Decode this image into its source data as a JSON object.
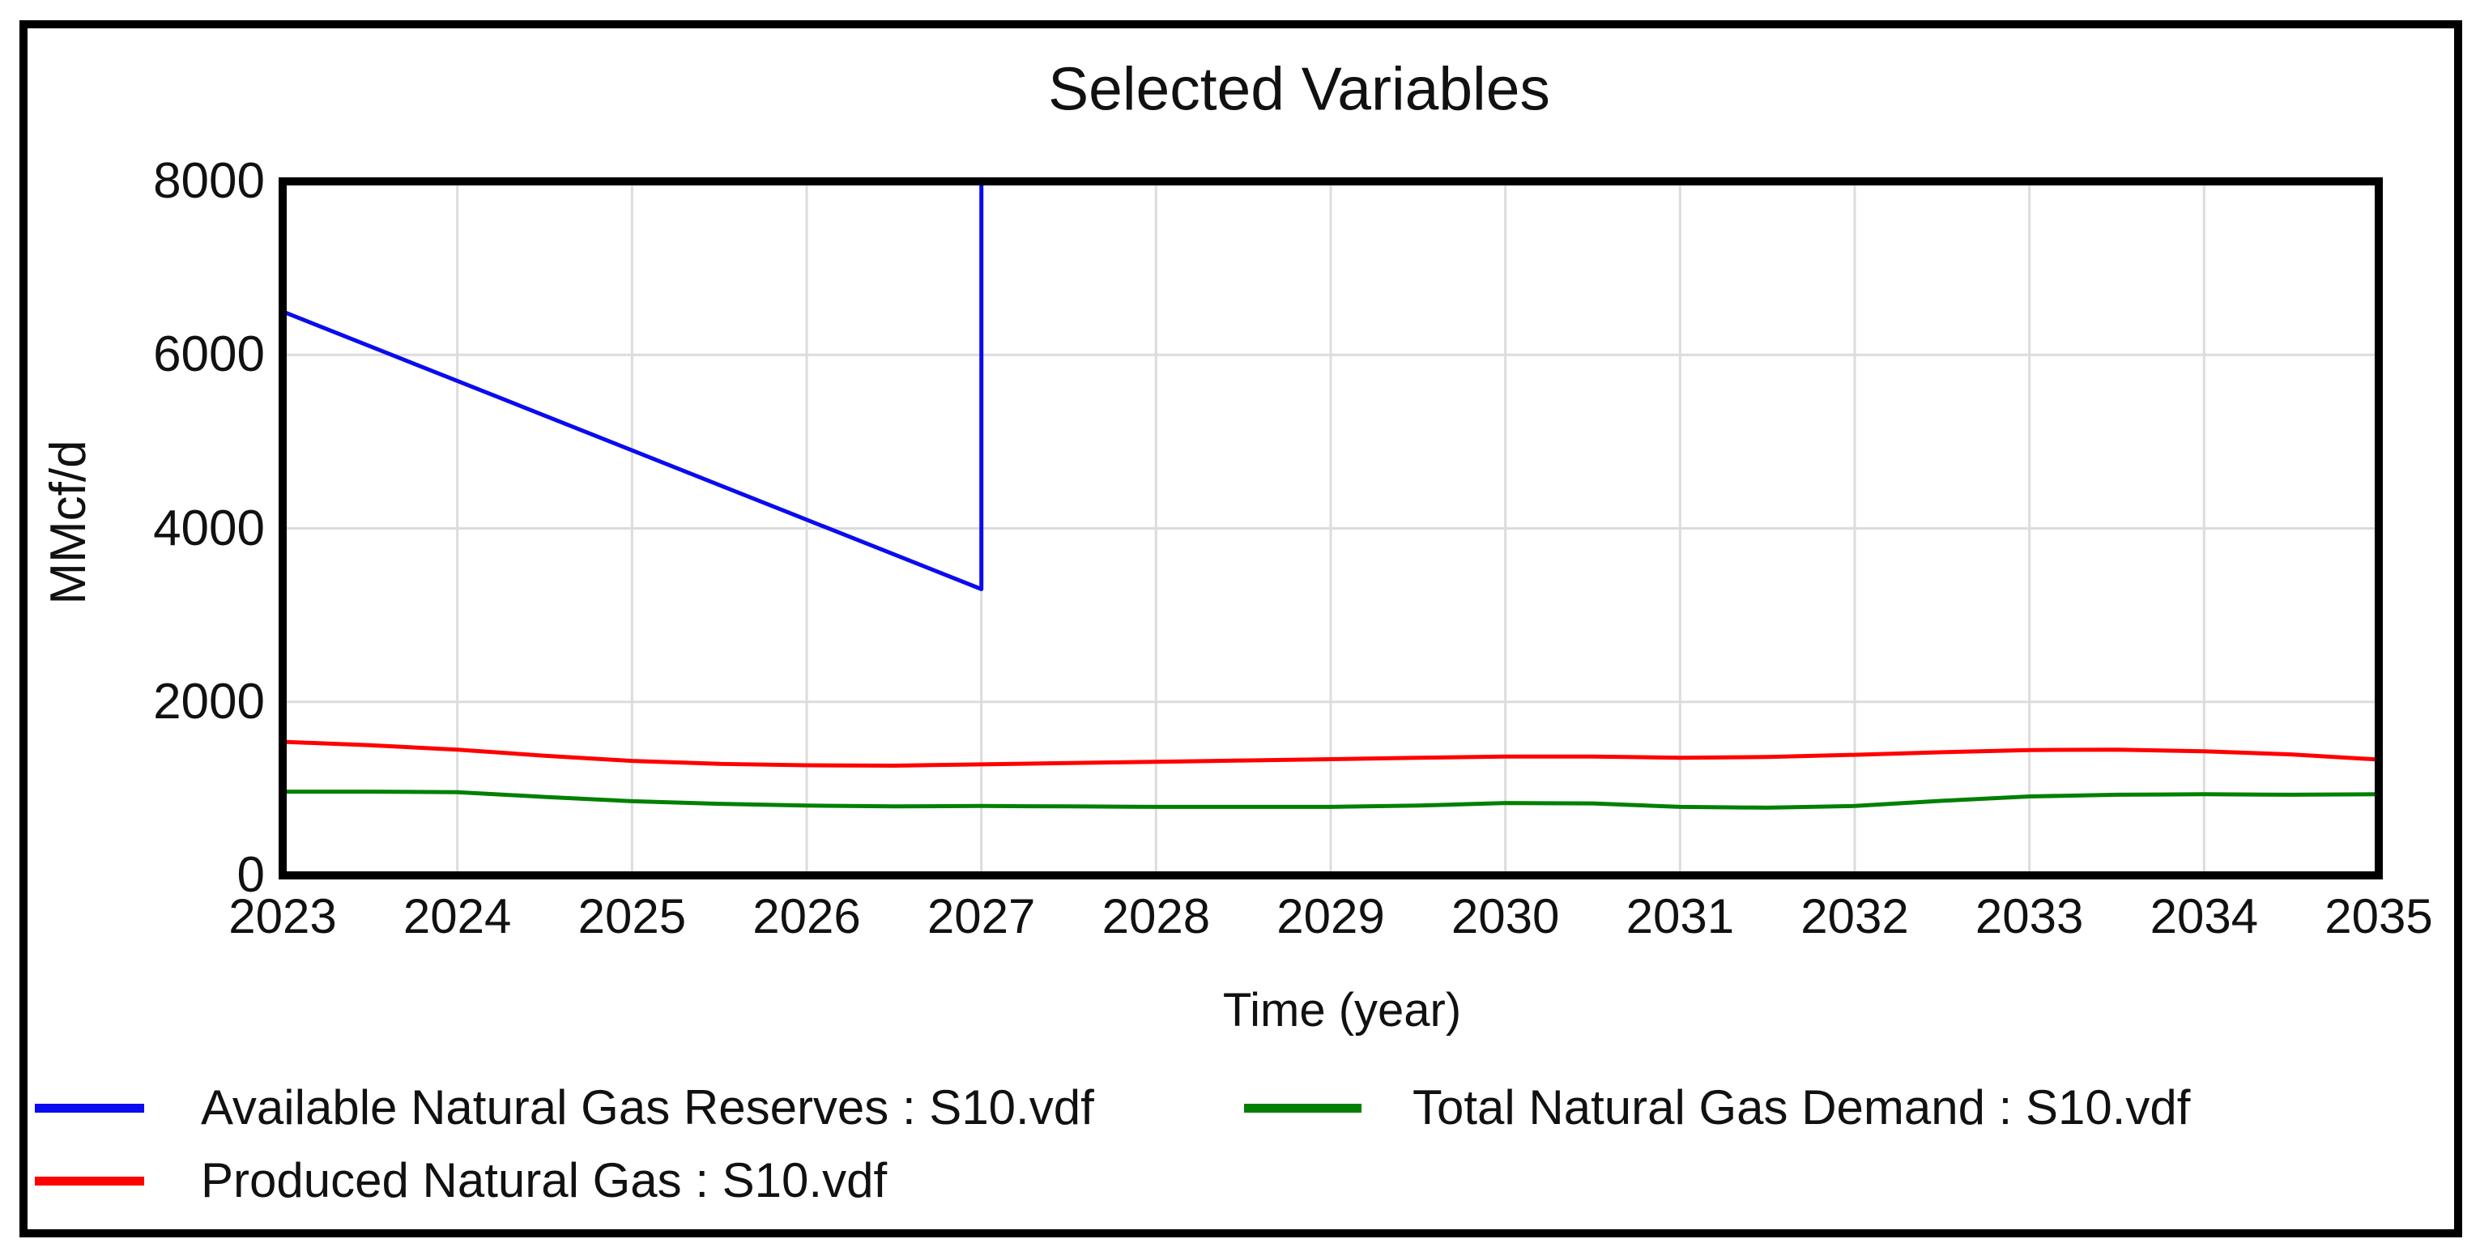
{
  "figure": {
    "title": "Selected Variables",
    "x_axis_title": "Time (year)",
    "y_axis_title": "MMcf/d"
  },
  "style": {
    "background": "#ffffff",
    "frame_color": "#000000",
    "grid_color": "#dcdcdc",
    "text_color": "#111111"
  },
  "chart_data": {
    "type": "line",
    "title": "Selected Variables",
    "xlabel": "Time (year)",
    "ylabel": "MMcf/d",
    "xlim": [
      2023,
      2035
    ],
    "ylim": [
      0,
      8000
    ],
    "x_ticks": [
      2023,
      2024,
      2025,
      2026,
      2027,
      2028,
      2029,
      2030,
      2031,
      2032,
      2033,
      2034,
      2035
    ],
    "y_ticks": [
      0,
      2000,
      4000,
      6000,
      8000
    ],
    "grid": true,
    "legend_position": "bottom",
    "series": [
      {
        "name": "Available Natural Gas Reserves : S10.vdf",
        "color": "#0b0bf0",
        "points": [
          [
            2023,
            6500
          ],
          [
            2027,
            3300
          ],
          [
            2027,
            8000
          ]
        ]
      },
      {
        "name": "Produced Natural Gas : S10.vdf",
        "color": "#ff0000",
        "points": [
          [
            2023,
            1540
          ],
          [
            2023.5,
            1500
          ],
          [
            2024,
            1450
          ],
          [
            2024.5,
            1380
          ],
          [
            2025,
            1320
          ],
          [
            2025.5,
            1285
          ],
          [
            2026,
            1270
          ],
          [
            2026.5,
            1265
          ],
          [
            2027,
            1280
          ],
          [
            2027.5,
            1295
          ],
          [
            2028,
            1310
          ],
          [
            2028.5,
            1325
          ],
          [
            2029,
            1340
          ],
          [
            2029.5,
            1355
          ],
          [
            2030,
            1370
          ],
          [
            2030.5,
            1370
          ],
          [
            2031,
            1355
          ],
          [
            2031.5,
            1365
          ],
          [
            2032,
            1390
          ],
          [
            2032.5,
            1420
          ],
          [
            2033,
            1445
          ],
          [
            2033.5,
            1450
          ],
          [
            2034,
            1430
          ],
          [
            2034.5,
            1395
          ],
          [
            2035,
            1335
          ]
        ]
      },
      {
        "name": "Total Natural Gas Demand : S10.vdf",
        "color": "#008000",
        "points": [
          [
            2023,
            965
          ],
          [
            2023.5,
            965
          ],
          [
            2024,
            960
          ],
          [
            2024.5,
            905
          ],
          [
            2025,
            855
          ],
          [
            2025.5,
            825
          ],
          [
            2026,
            805
          ],
          [
            2026.5,
            795
          ],
          [
            2027,
            800
          ],
          [
            2027.5,
            795
          ],
          [
            2028,
            790
          ],
          [
            2028.5,
            790
          ],
          [
            2029,
            790
          ],
          [
            2029.5,
            805
          ],
          [
            2030,
            835
          ],
          [
            2030.5,
            830
          ],
          [
            2031,
            790
          ],
          [
            2031.5,
            780
          ],
          [
            2032,
            800
          ],
          [
            2032.5,
            860
          ],
          [
            2033,
            910
          ],
          [
            2033.5,
            930
          ],
          [
            2034,
            935
          ],
          [
            2034.5,
            930
          ],
          [
            2035,
            935
          ]
        ]
      }
    ]
  }
}
